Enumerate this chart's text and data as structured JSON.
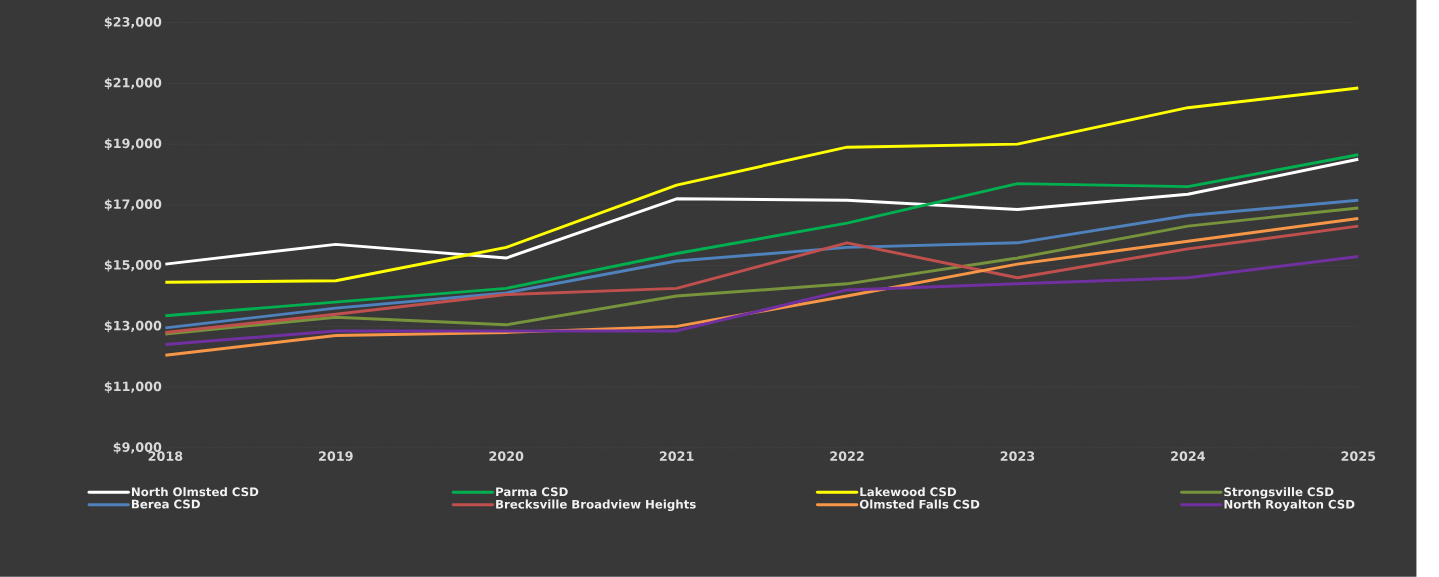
{
  "chart_data": {
    "type": "line",
    "categories": [
      "2018",
      "2019",
      "2020",
      "2021",
      "2022",
      "2023",
      "2024",
      "2025"
    ],
    "ylim": [
      9000,
      23000
    ],
    "yticks": [
      {
        "value": 9000,
        "label": "$9,000"
      },
      {
        "value": 11000,
        "label": "$11,000"
      },
      {
        "value": 13000,
        "label": "$13,000"
      },
      {
        "value": 15000,
        "label": "$15,000"
      },
      {
        "value": 17000,
        "label": "$17,000"
      },
      {
        "value": 19000,
        "label": "$19,000"
      },
      {
        "value": 21000,
        "label": "$21,000"
      },
      {
        "value": 23000,
        "label": "$23,000"
      }
    ],
    "grid": "y",
    "legend": "bottom",
    "marker": "none",
    "line_style": "solid",
    "series": [
      {
        "name": "North Olmsted CSD",
        "color": "#ffffff",
        "values": [
          15050,
          15700,
          15250,
          17200,
          17150,
          16850,
          17350,
          18500
        ]
      },
      {
        "name": "Parma CSD",
        "color": "#00b050",
        "values": [
          13350,
          13800,
          14250,
          15400,
          16400,
          17700,
          17600,
          18650
        ]
      },
      {
        "name": "Lakewood CSD",
        "color": "#ffff00",
        "values": [
          14450,
          14500,
          15600,
          17650,
          18900,
          19000,
          20200,
          20850
        ]
      },
      {
        "name": "Strongsville CSD",
        "color": "#77933c",
        "values": [
          12750,
          13300,
          13050,
          14000,
          14400,
          15250,
          16300,
          16900
        ]
      },
      {
        "name": "Berea CSD",
        "color": "#4f81bd",
        "values": [
          12950,
          13600,
          14100,
          15150,
          15600,
          15750,
          16650,
          17150
        ]
      },
      {
        "name": "Brecksville Broadview Heights",
        "color": "#c0504d",
        "values": [
          12800,
          13400,
          14050,
          14250,
          15750,
          14600,
          15550,
          16300
        ]
      },
      {
        "name": "Olmsted Falls CSD",
        "color": "#f79646",
        "values": [
          12050,
          12700,
          12800,
          13000,
          14000,
          15050,
          15800,
          16550
        ]
      },
      {
        "name": "North Royalton CSD",
        "color": "#7030a0",
        "values": [
          12400,
          12850,
          12850,
          12850,
          14200,
          14400,
          14600,
          15300
        ]
      }
    ]
  }
}
